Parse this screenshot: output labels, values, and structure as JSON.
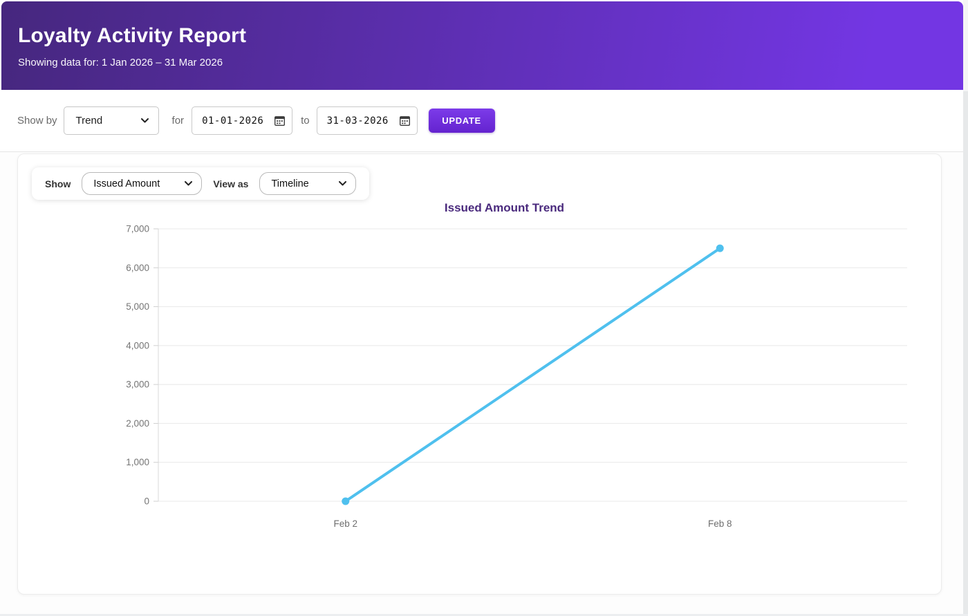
{
  "header": {
    "title": "Loyalty Activity Report",
    "subtitle": "Showing data for: 1 Jan 2026 – 31 Mar 2026"
  },
  "toolbar": {
    "show_by_label": "Show by",
    "show_by_value": "Trend",
    "for_label": "for",
    "date_from": "01-01-2026",
    "to_label": "to",
    "date_to": "31-03-2026",
    "update_label": "UPDATE"
  },
  "panel": {
    "show_label": "Show",
    "show_value": "Issued Amount",
    "view_as_label": "View as",
    "view_as_value": "Timeline"
  },
  "chart_data": {
    "type": "line",
    "title": "Issued Amount Trend",
    "x": [
      "Feb 2",
      "Feb 8"
    ],
    "series": [
      {
        "name": "Issued Amount",
        "values": [
          0,
          6500
        ]
      }
    ],
    "ylim": [
      0,
      7000
    ],
    "ytick_step": 1000,
    "ytick_labels": [
      "0",
      "1,000",
      "2,000",
      "3,000",
      "4,000",
      "5,000",
      "6,000",
      "7,000"
    ],
    "grid": true,
    "legend_position": "none",
    "line_color": "#4fc0ee",
    "point_color": "#4fc0ee",
    "grid_color": "#e8e8e8",
    "axis_color": "#d8d8d8",
    "tick_label_color": "#757575"
  },
  "colors": {
    "header_gradient_start": "#46277e",
    "header_gradient_end": "#7336e3",
    "accent": "#6d2fd9",
    "chart_title": "#4a2a7d"
  }
}
